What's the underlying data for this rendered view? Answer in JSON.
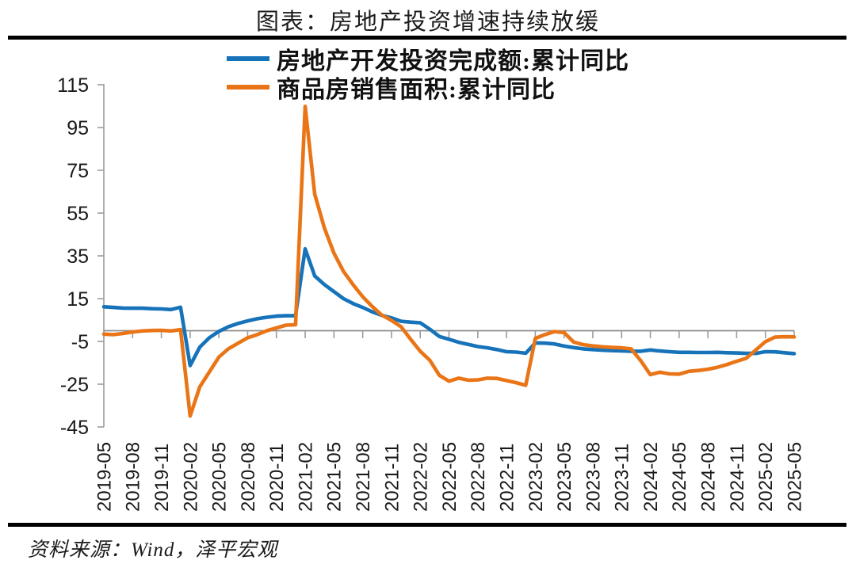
{
  "chart": {
    "title": "图表：房地产投资增速持续放缓",
    "source": "资料来源：Wind，泽平宏观",
    "legend": [
      {
        "label": "房地产开发投资完成额:累计同比",
        "color": "#1673B9"
      },
      {
        "label": "商品房销售面积:累计同比",
        "color": "#EA7517"
      }
    ],
    "colors": {
      "investment_line": "#1673B9",
      "sales_line": "#EA7517",
      "zero_line": "#8C8C8C",
      "axis": "#9C9C9C",
      "tick_text": "#1a1a1a"
    }
  },
  "chart_data": {
    "type": "line",
    "title": "图表：房地产投资增速持续放缓",
    "source": "资料来源：Wind，泽平宏观",
    "legend_position": "top",
    "grid": "zero-line-only",
    "ylim": [
      -45,
      115
    ],
    "y_ticks": [
      115,
      95,
      75,
      55,
      35,
      15,
      -5,
      -25,
      -45
    ],
    "x_tick_labels": [
      "2019-05",
      "2019-08",
      "2019-11",
      "2020-02",
      "2020-05",
      "2020-08",
      "2020-11",
      "2021-02",
      "2021-05",
      "2021-08",
      "2021-11",
      "2022-02",
      "2022-05",
      "2022-08",
      "2022-11",
      "2023-02",
      "2023-05",
      "2023-08",
      "2023-11",
      "2024-02",
      "2024-05",
      "2024-08",
      "2024-11",
      "2025-02",
      "2025-05"
    ],
    "x": [
      "2019-05",
      "2019-06",
      "2019-07",
      "2019-08",
      "2019-09",
      "2019-10",
      "2019-11",
      "2019-12",
      "2020-01",
      "2020-02",
      "2020-03",
      "2020-04",
      "2020-05",
      "2020-06",
      "2020-07",
      "2020-08",
      "2020-09",
      "2020-10",
      "2020-11",
      "2020-12",
      "2021-01",
      "2021-02",
      "2021-03",
      "2021-04",
      "2021-05",
      "2021-06",
      "2021-07",
      "2021-08",
      "2021-09",
      "2021-10",
      "2021-11",
      "2021-12",
      "2022-01",
      "2022-02",
      "2022-03",
      "2022-04",
      "2022-05",
      "2022-06",
      "2022-07",
      "2022-08",
      "2022-09",
      "2022-10",
      "2022-11",
      "2022-12",
      "2023-01",
      "2023-02",
      "2023-03",
      "2023-04",
      "2023-05",
      "2023-06",
      "2023-07",
      "2023-08",
      "2023-09",
      "2023-10",
      "2023-11",
      "2023-12",
      "2024-01",
      "2024-02",
      "2024-03",
      "2024-04",
      "2024-05",
      "2024-06",
      "2024-07",
      "2024-08",
      "2024-09",
      "2024-10",
      "2024-11",
      "2024-12",
      "2025-01",
      "2025-02",
      "2025-03",
      "2025-04",
      "2025-05"
    ],
    "series": [
      {
        "name": "房地产开发投资完成额:累计同比",
        "color": "#1673B9",
        "values": [
          11.2,
          10.9,
          10.6,
          10.5,
          10.5,
          10.3,
          10.2,
          9.9,
          11.0,
          -16.3,
          -7.7,
          -3.3,
          -0.3,
          1.9,
          3.4,
          4.6,
          5.6,
          6.3,
          6.8,
          7.0,
          7.0,
          38.3,
          25.6,
          21.6,
          18.3,
          15.0,
          12.7,
          10.9,
          8.8,
          7.2,
          6.0,
          4.4,
          4.0,
          3.7,
          0.7,
          -2.7,
          -4.0,
          -5.4,
          -6.4,
          -7.4,
          -8.0,
          -8.8,
          -9.8,
          -10.0,
          -10.5,
          -5.7,
          -5.8,
          -6.2,
          -7.2,
          -7.9,
          -8.5,
          -8.8,
          -9.1,
          -9.3,
          -9.4,
          -9.6,
          -9.6,
          -9.0,
          -9.5,
          -9.8,
          -10.1,
          -10.1,
          -10.2,
          -10.2,
          -10.1,
          -10.3,
          -10.4,
          -10.6,
          -10.6,
          -9.8,
          -9.9,
          -10.3,
          -10.7
        ]
      },
      {
        "name": "商品房销售面积:累计同比",
        "color": "#EA7517",
        "values": [
          -1.6,
          -1.8,
          -1.3,
          -0.6,
          -0.1,
          0.1,
          0.2,
          -0.1,
          0.5,
          -39.9,
          -26.3,
          -19.3,
          -12.3,
          -8.4,
          -5.8,
          -3.3,
          -1.8,
          0.0,
          1.3,
          2.6,
          2.8,
          104.9,
          63.8,
          48.1,
          36.3,
          27.7,
          21.5,
          15.9,
          11.3,
          7.3,
          4.8,
          1.9,
          -4.0,
          -9.6,
          -13.8,
          -20.9,
          -23.6,
          -22.2,
          -23.1,
          -23.0,
          -22.2,
          -22.3,
          -23.3,
          -24.3,
          -25.5,
          -3.6,
          -1.8,
          -0.4,
          -0.9,
          -5.3,
          -6.5,
          -7.1,
          -7.5,
          -7.8,
          -8.0,
          -8.5,
          -14.0,
          -20.5,
          -19.4,
          -20.2,
          -20.3,
          -19.0,
          -18.6,
          -18.0,
          -17.1,
          -15.8,
          -14.3,
          -12.9,
          -9.0,
          -5.1,
          -3.0,
          -2.8,
          -2.9
        ]
      }
    ]
  }
}
